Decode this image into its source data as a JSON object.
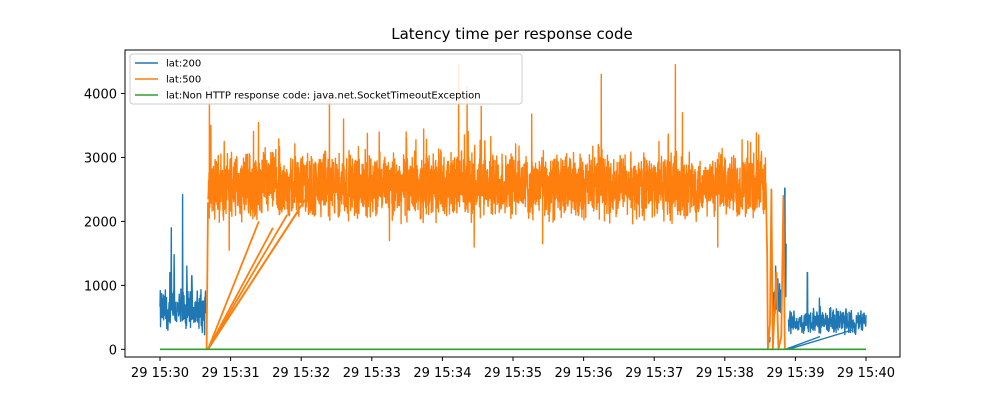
{
  "chart_data": {
    "type": "line",
    "title": "Latency time per response code",
    "xlabel": "",
    "ylabel": "",
    "x_tick_labels": [
      "29 15:30",
      "29 15:31",
      "29 15:32",
      "29 15:33",
      "29 15:34",
      "29 15:35",
      "29 15:36",
      "29 15:37",
      "29 15:38",
      "29 15:39",
      "29 15:40"
    ],
    "x_range_minutes": [
      0,
      10
    ],
    "ylim": [
      -120,
      4680
    ],
    "y_ticks": [
      0,
      1000,
      2000,
      3000,
      4000
    ],
    "legend_position": "top-left",
    "grid": false,
    "series": [
      {
        "name": "lat:200",
        "color": "#1f77b4",
        "segments": [
          {
            "x_start": 0.0,
            "x_end": 0.65,
            "base": 600,
            "amplitude": 340,
            "spikes": [
              [
                0.14,
                1200
              ],
              [
                0.16,
                1900
              ],
              [
                0.32,
                2420
              ],
              [
                0.2,
                1480
              ],
              [
                0.38,
                1300
              ],
              [
                0.45,
                1150
              ]
            ],
            "floor": 200
          },
          {
            "x_start": 8.62,
            "x_end": 8.64,
            "base": 150,
            "amplitude": 80,
            "spikes": [],
            "floor": 0
          },
          {
            "x_start": 8.68,
            "x_end": 8.8,
            "base": 750,
            "amplitude": 250,
            "spikes": [
              [
                8.72,
                1300
              ],
              [
                8.75,
                1100
              ]
            ],
            "floor": 400
          },
          {
            "x_start": 8.84,
            "x_end": 8.87,
            "base": 1300,
            "amplitude": 700,
            "spikes": [
              [
                8.85,
                2520
              ]
            ],
            "floor": 300
          },
          {
            "x_start": 8.9,
            "x_end": 10.0,
            "base": 420,
            "amplitude": 200,
            "spikes": [
              [
                9.17,
                1200
              ],
              [
                9.34,
                800
              ],
              [
                9.5,
                650
              ],
              [
                9.72,
                600
              ]
            ],
            "floor": 130
          }
        ],
        "drop_lines": [
          [
            8.86,
            0,
            9.35,
            200
          ],
          [
            8.9,
            0,
            9.8,
            300
          ]
        ]
      },
      {
        "name": "lat:500",
        "color": "#ff7f0e",
        "segments": [
          {
            "x_start": 0.68,
            "x_end": 8.58,
            "base": 2550,
            "amplitude": 500,
            "spikes": [
              [
                0.7,
                4100
              ],
              [
                0.72,
                3500
              ],
              [
                2.4,
                4000
              ],
              [
                2.6,
                3600
              ],
              [
                4.23,
                4450
              ],
              [
                4.35,
                4100
              ],
              [
                4.55,
                3800
              ],
              [
                6.25,
                4300
              ],
              [
                7.3,
                4450
              ],
              [
                7.4,
                3700
              ],
              [
                8.48,
                3350
              ]
            ],
            "floor": 1450,
            "dips": [
              [
                0.98,
                1550
              ],
              [
                3.25,
                1700
              ],
              [
                4.45,
                1600
              ],
              [
                5.42,
                1650
              ],
              [
                7.9,
                1600
              ]
            ]
          }
        ],
        "drop_lines": [
          [
            0.68,
            0,
            1.4,
            2000
          ],
          [
            0.68,
            0,
            1.6,
            1900
          ],
          [
            0.68,
            0,
            1.8,
            2100
          ],
          [
            0.68,
            0,
            1.95,
            2150
          ],
          [
            0.68,
            0,
            2.15,
            2500
          ],
          [
            0.66,
            0,
            0.68,
            2300
          ]
        ],
        "tail": [
          [
            8.58,
            2600
          ],
          [
            8.6,
            1500
          ],
          [
            8.61,
            0
          ],
          [
            8.64,
            400
          ],
          [
            8.66,
            2500
          ],
          [
            8.68,
            0
          ],
          [
            8.73,
            1200
          ],
          [
            8.76,
            0
          ],
          [
            8.8,
            200
          ],
          [
            8.83,
            2400
          ],
          [
            8.85,
            0
          ]
        ]
      },
      {
        "name": "lat:Non HTTP response code: java.net.SocketTimeoutException",
        "color": "#2ca02c",
        "flat_value": 0,
        "x_start": 0.0,
        "x_end": 10.0
      }
    ]
  }
}
